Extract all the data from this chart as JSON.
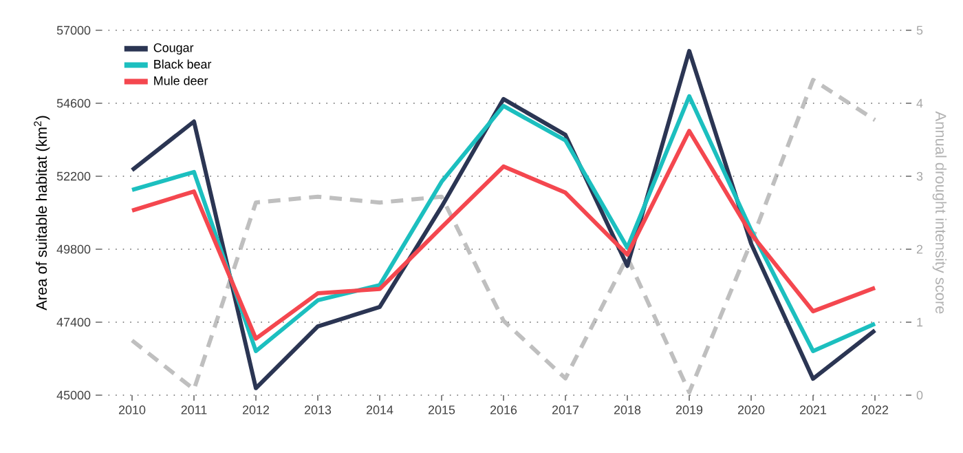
{
  "chart_data": {
    "type": "line",
    "ylabel": "Area of suitable habitat (km$^{2}$)",
    "y2label": "Annual drought intensity score",
    "categories": [
      "2010",
      "2011",
      "2012",
      "2013",
      "2014",
      "2015",
      "2016",
      "2017",
      "2018",
      "2019",
      "2020",
      "2021",
      "2022"
    ],
    "series": [
      {
        "name": "Cougar",
        "color": "#2b3553",
        "values": [
          52400,
          54000,
          45230,
          47260,
          47900,
          51200,
          54740,
          53560,
          49250,
          56320,
          49980,
          45540,
          47130
        ]
      },
      {
        "name": "Black bear",
        "color": "#1cbfbf",
        "values": [
          51750,
          52340,
          46450,
          48120,
          48620,
          52020,
          54510,
          53380,
          49850,
          54830,
          50430,
          46450,
          47350
        ]
      },
      {
        "name": "Mule deer",
        "color": "#f4474f",
        "values": [
          51070,
          51700,
          46860,
          48350,
          48490,
          50520,
          52520,
          51660,
          49620,
          53690,
          50300,
          47760,
          48530
        ]
      },
      {
        "color": "#bfbfbf",
        "axis": "y2",
        "line_style": "dashed",
        "values": [
          0.75,
          0.08,
          2.64,
          2.72,
          2.64,
          2.72,
          1.02,
          0.23,
          1.89,
          0.04,
          2.1,
          4.32,
          3.77
        ]
      }
    ],
    "ylim": [
      45000,
      57000
    ],
    "yticks": [
      45000,
      47400,
      49800,
      52200,
      54600,
      57000
    ],
    "y2lim": [
      0,
      5
    ],
    "y2ticks": [
      0,
      1,
      2,
      3,
      4,
      5
    ],
    "grid": "y",
    "legend": "top left",
    "line_style": "solid",
    "marker": "none"
  }
}
